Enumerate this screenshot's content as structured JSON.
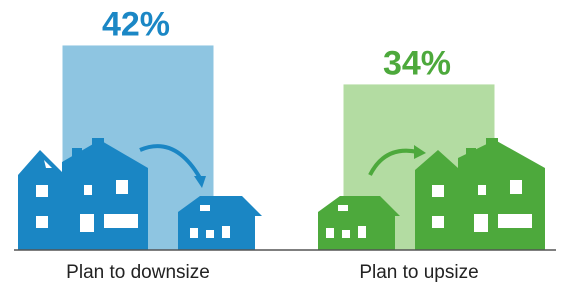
{
  "chart_data": {
    "type": "bar",
    "categories": [
      "Plan to downsize",
      "Plan to upsize"
    ],
    "values": [
      42,
      34
    ],
    "value_labels": [
      "42%",
      "34%"
    ],
    "colors": [
      "#8ec5e1",
      "#b3dca2"
    ],
    "label_colors": [
      "#1b87c5",
      "#4da93c"
    ]
  }
}
